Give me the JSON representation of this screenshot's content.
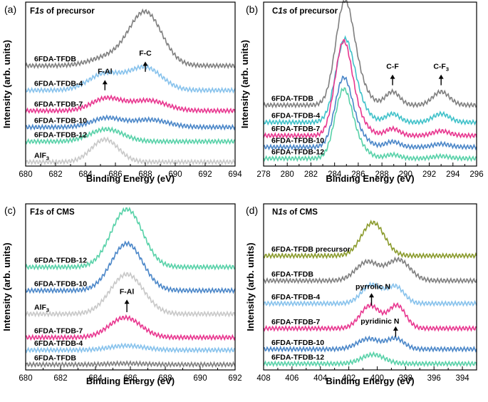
{
  "chart_data": [
    {
      "id": "a",
      "type": "line",
      "panel_label": "(a)",
      "title_pre": "F",
      "title_italic": "1s",
      "title_post": " of precursor",
      "xlabel": "Binding Energy (eV)",
      "ylabel": "Intensity (arb. units)",
      "xlim": [
        680,
        694
      ],
      "x_reversed": false,
      "xticks": [
        680,
        682,
        684,
        686,
        688,
        690,
        692,
        694
      ],
      "series": [
        {
          "name": "6FDA-TFDB",
          "color": "#7f7f7f",
          "baseline": 2.45,
          "peaks": [
            {
              "c": 688.0,
              "h": 1.3,
              "w": 1.1
            },
            {
              "c": 685.5,
              "h": 0.2,
              "w": 1.2
            }
          ]
        },
        {
          "name": "6FDA-TFDB-4",
          "color": "#87c2ec",
          "baseline": 1.85,
          "peaks": [
            {
              "c": 688.0,
              "h": 0.55,
              "w": 1.1
            },
            {
              "c": 685.3,
              "h": 0.4,
              "w": 1.1
            }
          ]
        },
        {
          "name": "6FDA-TFDB-7",
          "color": "#e8368f",
          "baseline": 1.35,
          "peaks": [
            {
              "c": 685.4,
              "h": 0.3,
              "w": 1.0
            },
            {
              "c": 688.2,
              "h": 0.25,
              "w": 1.2
            }
          ]
        },
        {
          "name": "6FDA-TFDB-10",
          "color": "#4a86c8",
          "baseline": 0.95,
          "peaks": [
            {
              "c": 685.4,
              "h": 0.22,
              "w": 1.0
            },
            {
              "c": 688.3,
              "h": 0.18,
              "w": 1.2
            }
          ]
        },
        {
          "name": "6FDA-TFDB-12",
          "color": "#57d1a8",
          "baseline": 0.6,
          "peaks": [
            {
              "c": 685.4,
              "h": 0.3,
              "w": 1.1
            }
          ]
        },
        {
          "name": "AlF3",
          "label_main": "AlF",
          "label_sub": "3",
          "color": "#c8c8c8",
          "baseline": 0.1,
          "peaks": [
            {
              "c": 685.3,
              "h": 0.55,
              "w": 0.9
            }
          ]
        }
      ],
      "ylim": [
        0,
        4.0
      ],
      "annotations": [
        {
          "text": "F-C",
          "x": 688.0,
          "y_tail": 2.3,
          "y_head": 2.55,
          "y_text": 2.7
        },
        {
          "text": "F-Al",
          "x": 685.3,
          "y_tail": 1.85,
          "y_head": 2.1,
          "y_text": 2.25
        }
      ]
    },
    {
      "id": "b",
      "type": "line",
      "panel_label": "(b)",
      "title_pre": "C",
      "title_italic": "1s",
      "title_post": " of precursor",
      "xlabel": "Binding Energy (eV)",
      "ylabel": "Intensity (arb. units)",
      "xlim": [
        278,
        296
      ],
      "x_reversed": false,
      "xticks": [
        278,
        280,
        282,
        284,
        286,
        288,
        290,
        292,
        294,
        296
      ],
      "series": [
        {
          "name": "6FDA-TFDB",
          "color": "#7f7f7f",
          "baseline": 1.6,
          "peaks": [
            {
              "c": 284.8,
              "h": 2.4,
              "w": 0.75
            },
            {
              "c": 285.8,
              "h": 0.6,
              "w": 0.9
            },
            {
              "c": 288.9,
              "h": 0.35,
              "w": 0.6
            },
            {
              "c": 293.0,
              "h": 0.35,
              "w": 0.7
            }
          ]
        },
        {
          "name": "6FDA-TFDB-4",
          "color": "#3fc1c9",
          "baseline": 1.15,
          "peaks": [
            {
              "c": 284.8,
              "h": 1.9,
              "w": 0.75
            },
            {
              "c": 285.8,
              "h": 0.5,
              "w": 0.9
            },
            {
              "c": 288.9,
              "h": 0.22,
              "w": 0.6
            },
            {
              "c": 293.0,
              "h": 0.22,
              "w": 0.7
            }
          ]
        },
        {
          "name": "6FDA-TFDB-7",
          "color": "#e8368f",
          "baseline": 0.8,
          "peaks": [
            {
              "c": 284.7,
              "h": 2.2,
              "w": 0.7
            },
            {
              "c": 285.7,
              "h": 0.5,
              "w": 0.9
            },
            {
              "c": 288.9,
              "h": 0.18,
              "w": 0.6
            },
            {
              "c": 293.0,
              "h": 0.12,
              "w": 0.7
            }
          ]
        },
        {
          "name": "6FDA-TFDB-10",
          "color": "#4a86c8",
          "baseline": 0.5,
          "peaks": [
            {
              "c": 284.7,
              "h": 1.6,
              "w": 0.7
            },
            {
              "c": 285.7,
              "h": 0.4,
              "w": 0.9
            },
            {
              "c": 288.9,
              "h": 0.14,
              "w": 0.6
            },
            {
              "c": 293.0,
              "h": 0.08,
              "w": 0.7
            }
          ]
        },
        {
          "name": "6FDA-TFDB-12",
          "color": "#57d1a8",
          "baseline": 0.2,
          "peaks": [
            {
              "c": 284.7,
              "h": 1.6,
              "w": 0.7
            },
            {
              "c": 285.7,
              "h": 0.4,
              "w": 0.9
            },
            {
              "c": 288.9,
              "h": 0.1,
              "w": 0.6
            },
            {
              "c": 293.0,
              "h": 0.06,
              "w": 0.7
            }
          ]
        }
      ],
      "ylim": [
        0,
        4.3
      ],
      "annotations": [
        {
          "text": "C-F",
          "x": 288.9,
          "y_tail": 2.12,
          "y_head": 2.4,
          "y_text": 2.55
        },
        {
          "text": "C-F",
          "sub": "3",
          "x": 293.0,
          "y_tail": 2.12,
          "y_head": 2.4,
          "y_text": 2.55
        }
      ]
    },
    {
      "id": "c",
      "type": "line",
      "panel_label": "(c)",
      "title_pre": "F",
      "title_italic": "1s",
      "title_post": " of CMS",
      "xlabel": "Binding Energy (eV)",
      "ylabel": "Intensity (arb. units)",
      "xlim": [
        680,
        692
      ],
      "x_reversed": false,
      "xticks": [
        680,
        682,
        684,
        686,
        688,
        690,
        692
      ],
      "series": [
        {
          "name": "6FDA-TFDB-12",
          "color": "#57d1a8",
          "baseline": 2.85,
          "peaks": [
            {
              "c": 685.8,
              "h": 1.6,
              "w": 0.9
            }
          ]
        },
        {
          "name": "6FDA-TFDB-10",
          "color": "#4a86c8",
          "baseline": 2.2,
          "peaks": [
            {
              "c": 685.8,
              "h": 1.3,
              "w": 0.9
            }
          ]
        },
        {
          "name": "AlF3",
          "label_main": "AlF",
          "label_sub": "3",
          "color": "#c8c8c8",
          "baseline": 1.55,
          "peaks": [
            {
              "c": 685.8,
              "h": 1.1,
              "w": 0.95
            }
          ]
        },
        {
          "name": "6FDA-TFDB-7",
          "color": "#e8368f",
          "baseline": 0.9,
          "peaks": [
            {
              "c": 685.7,
              "h": 0.55,
              "w": 0.9
            }
          ]
        },
        {
          "name": "6FDA-TFDB-4",
          "color": "#87c2ec",
          "baseline": 0.55,
          "peaks": [
            {
              "c": 685.8,
              "h": 0.12,
              "w": 1.0
            }
          ]
        },
        {
          "name": "6FDA-TFDB",
          "color": "#7f7f7f",
          "baseline": 0.15,
          "peaks": [
            {
              "c": 685.8,
              "h": 0.03,
              "w": 1.0
            }
          ]
        }
      ],
      "ylim": [
        0,
        4.6
      ],
      "annotations": [
        {
          "text": "F-Al",
          "x": 685.8,
          "y_tail": 1.6,
          "y_head": 1.95,
          "y_text": 2.1
        }
      ]
    },
    {
      "id": "d",
      "type": "line",
      "panel_label": "(d)",
      "title_pre": "N",
      "title_italic": "1s",
      "title_post": " of CMS",
      "xlabel": "Binding Energy (eV)",
      "ylabel": "Intensity (arb. units)",
      "xlim": [
        408,
        393
      ],
      "x_reversed": true,
      "xticks": [
        408,
        406,
        404,
        402,
        400,
        398,
        396,
        394
      ],
      "series": [
        {
          "name": "6FDA-TFDB precursor",
          "color": "#8a9a2b",
          "baseline": 2.75,
          "peaks": [
            {
              "c": 400.3,
              "h": 0.8,
              "w": 0.8
            }
          ]
        },
        {
          "name": "6FDA-TFDB",
          "color": "#7f7f7f",
          "baseline": 2.15,
          "peaks": [
            {
              "c": 400.7,
              "h": 0.45,
              "w": 0.8
            },
            {
              "c": 398.5,
              "h": 0.5,
              "w": 0.8
            }
          ]
        },
        {
          "name": "6FDA-TFDB-4",
          "color": "#87c2ec",
          "baseline": 1.6,
          "peaks": [
            {
              "c": 400.4,
              "h": 0.45,
              "w": 0.7
            },
            {
              "c": 398.7,
              "h": 0.4,
              "w": 0.6
            }
          ]
        },
        {
          "name": "6FDA-TFDB-7",
          "color": "#e8368f",
          "baseline": 1.0,
          "peaks": [
            {
              "c": 400.5,
              "h": 0.55,
              "w": 0.7
            },
            {
              "c": 398.6,
              "h": 0.55,
              "w": 0.6
            }
          ]
        },
        {
          "name": "6FDA-TFDB-10",
          "color": "#4a86c8",
          "baseline": 0.5,
          "peaks": [
            {
              "c": 400.6,
              "h": 0.25,
              "w": 0.8
            },
            {
              "c": 398.7,
              "h": 0.25,
              "w": 0.6
            }
          ]
        },
        {
          "name": "6FDA-TFDB-12",
          "color": "#57d1a8",
          "baseline": 0.15,
          "peaks": [
            {
              "c": 400.3,
              "h": 0.22,
              "w": 0.8
            }
          ]
        }
      ],
      "ylim": [
        0,
        4.0
      ],
      "annotations": [
        {
          "text": "pyrrolic N",
          "x": 400.4,
          "y_tail": 1.55,
          "y_head": 1.85,
          "y_text": 1.95,
          "dx": 2
        },
        {
          "text": "pyridinic N",
          "x": 398.7,
          "y_tail": 0.8,
          "y_head": 1.05,
          "y_text": 1.12,
          "dx": -22
        }
      ]
    }
  ]
}
